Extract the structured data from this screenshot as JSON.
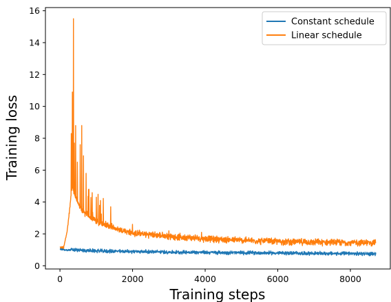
{
  "chart_data": {
    "type": "line",
    "title": "",
    "xlabel": "Training steps",
    "ylabel": "Training loss",
    "xlim": [
      -400,
      9100
    ],
    "ylim": [
      -0.2,
      16.2
    ],
    "xticks": [
      0,
      2000,
      4000,
      6000,
      8000
    ],
    "yticks": [
      0,
      2,
      4,
      6,
      8,
      10,
      12,
      14,
      16
    ],
    "grid": false,
    "legend_position": "top-right",
    "series": [
      {
        "name": "Constant schedule",
        "color": "#1f77b4",
        "x": [
          0,
          100,
          200,
          300,
          500,
          800,
          1200,
          2000,
          3000,
          4000,
          5000,
          6000,
          7000,
          8000,
          8700
        ],
        "y": [
          1.05,
          1.0,
          0.98,
          1.0,
          0.98,
          0.95,
          0.92,
          0.9,
          0.86,
          0.84,
          0.82,
          0.8,
          0.78,
          0.76,
          0.75
        ],
        "noise": 0.1
      },
      {
        "name": "Linear schedule",
        "color": "#ff7f0e",
        "x": [
          0,
          100,
          200,
          280,
          330,
          380,
          450,
          600,
          800,
          1000,
          1500,
          2000,
          3000,
          4000,
          5000,
          6000,
          7000,
          8000,
          8700
        ],
        "y": [
          1.15,
          1.1,
          2.2,
          3.8,
          5.0,
          4.6,
          4.2,
          3.5,
          3.1,
          2.8,
          2.35,
          2.05,
          1.85,
          1.7,
          1.6,
          1.52,
          1.48,
          1.45,
          1.45
        ],
        "noise": 0.18,
        "spikes": [
          {
            "x": 310,
            "y": 8.3
          },
          {
            "x": 340,
            "y": 10.9
          },
          {
            "x": 370,
            "y": 15.5
          },
          {
            "x": 395,
            "y": 7.7
          },
          {
            "x": 430,
            "y": 8.8
          },
          {
            "x": 480,
            "y": 6.5
          },
          {
            "x": 560,
            "y": 7.6
          },
          {
            "x": 600,
            "y": 8.8
          },
          {
            "x": 650,
            "y": 6.9
          },
          {
            "x": 720,
            "y": 5.8
          },
          {
            "x": 800,
            "y": 4.8
          },
          {
            "x": 1000,
            "y": 4.3
          },
          {
            "x": 1400,
            "y": 3.7
          },
          {
            "x": 2000,
            "y": 2.6
          },
          {
            "x": 3000,
            "y": 2.2
          },
          {
            "x": 3900,
            "y": 2.1
          }
        ]
      }
    ]
  }
}
